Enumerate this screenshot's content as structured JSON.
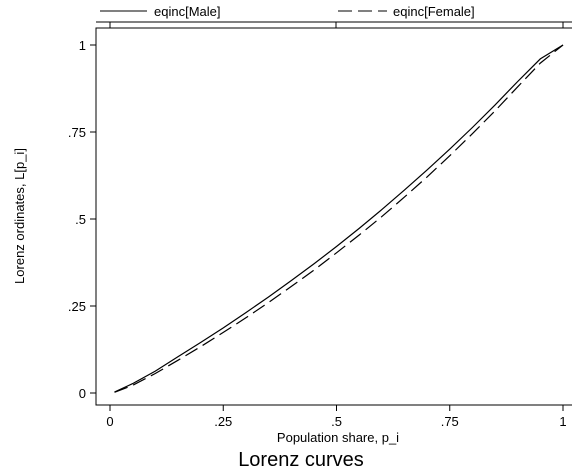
{
  "chart_data": {
    "type": "line",
    "title": "Lorenz curves",
    "xlabel": "Population share, p_i",
    "ylabel": "Lorenz ordinates, L[p_i]",
    "xlim": [
      0,
      1
    ],
    "ylim": [
      0,
      1
    ],
    "grid": false,
    "legend_position": "top",
    "x_ticks": [
      {
        "value": 0,
        "label": "0"
      },
      {
        "value": 0.25,
        "label": ".25"
      },
      {
        "value": 0.5,
        "label": ".5"
      },
      {
        "value": 0.75,
        "label": ".75"
      },
      {
        "value": 1,
        "label": "1"
      }
    ],
    "y_ticks": [
      {
        "value": 0,
        "label": "0"
      },
      {
        "value": 0.25,
        "label": ".25"
      },
      {
        "value": 0.5,
        "label": ".5"
      },
      {
        "value": 0.75,
        "label": ".75"
      },
      {
        "value": 1,
        "label": "1"
      }
    ],
    "series": [
      {
        "name": "eqinc[Male]",
        "style": "solid",
        "color": "#000000",
        "x": [
          0.01,
          0.05,
          0.1,
          0.15,
          0.2,
          0.25,
          0.3,
          0.35,
          0.4,
          0.45,
          0.5,
          0.55,
          0.6,
          0.65,
          0.7,
          0.75,
          0.8,
          0.85,
          0.9,
          0.95,
          1.0
        ],
        "y": [
          0.003,
          0.027,
          0.063,
          0.104,
          0.145,
          0.187,
          0.231,
          0.276,
          0.323,
          0.371,
          0.421,
          0.473,
          0.527,
          0.583,
          0.641,
          0.701,
          0.763,
          0.828,
          0.895,
          0.96,
          1.0
        ]
      },
      {
        "name": "eqinc[Female]",
        "style": "dashed",
        "color": "#000000",
        "x": [
          0.01,
          0.05,
          0.1,
          0.15,
          0.2,
          0.25,
          0.3,
          0.35,
          0.4,
          0.45,
          0.5,
          0.55,
          0.6,
          0.65,
          0.7,
          0.75,
          0.8,
          0.85,
          0.9,
          0.95,
          1.0
        ],
        "y": [
          0.002,
          0.022,
          0.056,
          0.094,
          0.133,
          0.174,
          0.216,
          0.26,
          0.306,
          0.353,
          0.403,
          0.454,
          0.507,
          0.563,
          0.621,
          0.682,
          0.745,
          0.811,
          0.88,
          0.948,
          1.0
        ]
      }
    ]
  }
}
